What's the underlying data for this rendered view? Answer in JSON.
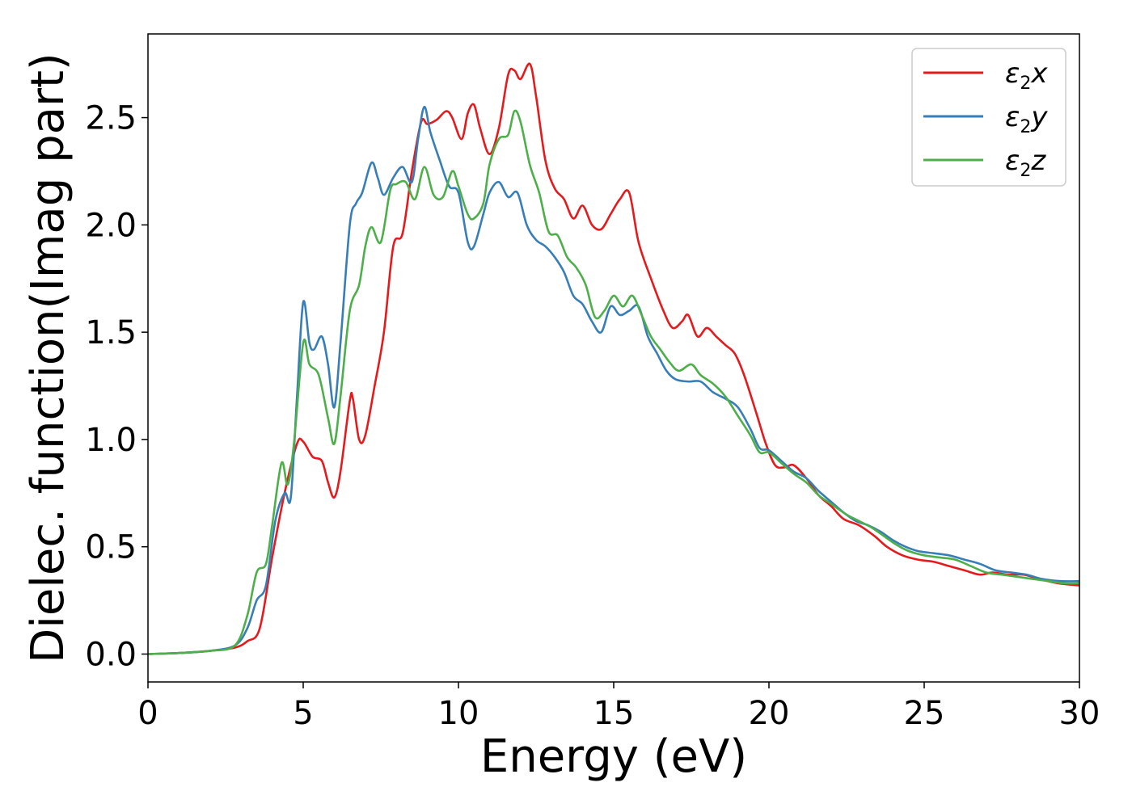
{
  "chart_data": {
    "type": "line",
    "xlabel": "Energy (eV)",
    "ylabel": "Dielec. function(Imag part)",
    "xlim": [
      0,
      30
    ],
    "ylim": [
      -0.13,
      2.89
    ],
    "xticks": [
      0,
      5,
      10,
      15,
      20,
      25,
      30
    ],
    "xtick_labels": [
      "0",
      "5",
      "10",
      "15",
      "20",
      "25",
      "30"
    ],
    "yticks": [
      0.0,
      0.5,
      1.0,
      1.5,
      2.0,
      2.5
    ],
    "ytick_labels": [
      "0.0",
      "0.5",
      "1.0",
      "1.5",
      "2.0",
      "2.5"
    ],
    "grid": false,
    "legend_position": "top-right",
    "series": [
      {
        "name": "ε2x",
        "name_base": "ε",
        "name_sub": "2",
        "name_suffix": "x",
        "color": "#e41a1c",
        "points": [
          [
            0,
            0
          ],
          [
            1,
            0.005
          ],
          [
            2,
            0.015
          ],
          [
            2.8,
            0.03
          ],
          [
            3.2,
            0.06
          ],
          [
            3.6,
            0.12
          ],
          [
            4.0,
            0.45
          ],
          [
            4.4,
            0.75
          ],
          [
            4.8,
            0.98
          ],
          [
            5.0,
            0.99
          ],
          [
            5.3,
            0.92
          ],
          [
            5.6,
            0.9
          ],
          [
            5.8,
            0.8
          ],
          [
            6.0,
            0.73
          ],
          [
            6.2,
            0.85
          ],
          [
            6.5,
            1.18
          ],
          [
            6.6,
            1.19
          ],
          [
            6.8,
            1.0
          ],
          [
            7.0,
            1.02
          ],
          [
            7.3,
            1.25
          ],
          [
            7.6,
            1.5
          ],
          [
            7.9,
            1.9
          ],
          [
            8.2,
            1.96
          ],
          [
            8.5,
            2.25
          ],
          [
            8.8,
            2.48
          ],
          [
            9.0,
            2.47
          ],
          [
            9.3,
            2.49
          ],
          [
            9.6,
            2.53
          ],
          [
            9.8,
            2.5
          ],
          [
            10.1,
            2.4
          ],
          [
            10.3,
            2.52
          ],
          [
            10.5,
            2.56
          ],
          [
            10.7,
            2.45
          ],
          [
            11.0,
            2.33
          ],
          [
            11.3,
            2.45
          ],
          [
            11.6,
            2.7
          ],
          [
            11.8,
            2.72
          ],
          [
            12.0,
            2.68
          ],
          [
            12.3,
            2.75
          ],
          [
            12.5,
            2.6
          ],
          [
            12.8,
            2.3
          ],
          [
            13.1,
            2.17
          ],
          [
            13.4,
            2.12
          ],
          [
            13.7,
            2.03
          ],
          [
            14.0,
            2.09
          ],
          [
            14.3,
            2.0
          ],
          [
            14.6,
            1.98
          ],
          [
            14.9,
            2.05
          ],
          [
            15.2,
            2.12
          ],
          [
            15.5,
            2.15
          ],
          [
            15.8,
            1.92
          ],
          [
            16.2,
            1.75
          ],
          [
            16.6,
            1.6
          ],
          [
            16.9,
            1.52
          ],
          [
            17.2,
            1.55
          ],
          [
            17.4,
            1.58
          ],
          [
            17.7,
            1.48
          ],
          [
            18.0,
            1.52
          ],
          [
            18.3,
            1.48
          ],
          [
            18.6,
            1.44
          ],
          [
            18.9,
            1.4
          ],
          [
            19.2,
            1.3
          ],
          [
            19.6,
            1.12
          ],
          [
            19.9,
            0.98
          ],
          [
            20.2,
            0.88
          ],
          [
            20.5,
            0.87
          ],
          [
            20.8,
            0.88
          ],
          [
            21.2,
            0.82
          ],
          [
            21.6,
            0.74
          ],
          [
            22.0,
            0.69
          ],
          [
            22.4,
            0.63
          ],
          [
            22.9,
            0.6
          ],
          [
            23.4,
            0.55
          ],
          [
            23.8,
            0.5
          ],
          [
            24.3,
            0.46
          ],
          [
            24.8,
            0.44
          ],
          [
            25.3,
            0.43
          ],
          [
            25.8,
            0.41
          ],
          [
            26.3,
            0.39
          ],
          [
            26.8,
            0.37
          ],
          [
            27.2,
            0.38
          ],
          [
            27.7,
            0.37
          ],
          [
            28.2,
            0.37
          ],
          [
            28.7,
            0.35
          ],
          [
            29.3,
            0.33
          ],
          [
            30,
            0.32
          ]
        ]
      },
      {
        "name": "ε2y",
        "name_base": "ε",
        "name_sub": "2",
        "name_suffix": "y",
        "color": "#377eb8",
        "points": [
          [
            0,
            0
          ],
          [
            1,
            0.005
          ],
          [
            2,
            0.015
          ],
          [
            2.8,
            0.04
          ],
          [
            3.2,
            0.12
          ],
          [
            3.5,
            0.25
          ],
          [
            3.8,
            0.32
          ],
          [
            4.1,
            0.62
          ],
          [
            4.4,
            0.75
          ],
          [
            4.6,
            0.73
          ],
          [
            4.8,
            1.2
          ],
          [
            5.0,
            1.64
          ],
          [
            5.2,
            1.45
          ],
          [
            5.35,
            1.42
          ],
          [
            5.6,
            1.48
          ],
          [
            5.8,
            1.35
          ],
          [
            6.0,
            1.15
          ],
          [
            6.2,
            1.45
          ],
          [
            6.5,
            2.0
          ],
          [
            6.7,
            2.1
          ],
          [
            6.9,
            2.15
          ],
          [
            7.2,
            2.29
          ],
          [
            7.4,
            2.22
          ],
          [
            7.6,
            2.14
          ],
          [
            7.9,
            2.22
          ],
          [
            8.2,
            2.27
          ],
          [
            8.5,
            2.2
          ],
          [
            8.7,
            2.4
          ],
          [
            8.9,
            2.55
          ],
          [
            9.1,
            2.43
          ],
          [
            9.4,
            2.3
          ],
          [
            9.7,
            2.18
          ],
          [
            10.0,
            2.15
          ],
          [
            10.3,
            1.92
          ],
          [
            10.5,
            1.9
          ],
          [
            10.8,
            2.05
          ],
          [
            11.0,
            2.15
          ],
          [
            11.3,
            2.2
          ],
          [
            11.6,
            2.13
          ],
          [
            11.9,
            2.15
          ],
          [
            12.2,
            2.0
          ],
          [
            12.5,
            1.93
          ],
          [
            12.8,
            1.9
          ],
          [
            13.1,
            1.85
          ],
          [
            13.4,
            1.78
          ],
          [
            13.7,
            1.67
          ],
          [
            14.0,
            1.63
          ],
          [
            14.3,
            1.55
          ],
          [
            14.6,
            1.5
          ],
          [
            14.9,
            1.62
          ],
          [
            15.2,
            1.58
          ],
          [
            15.5,
            1.6
          ],
          [
            15.8,
            1.62
          ],
          [
            16.1,
            1.48
          ],
          [
            16.4,
            1.4
          ],
          [
            16.7,
            1.32
          ],
          [
            17.0,
            1.28
          ],
          [
            17.4,
            1.27
          ],
          [
            17.8,
            1.27
          ],
          [
            18.2,
            1.22
          ],
          [
            18.6,
            1.19
          ],
          [
            19.0,
            1.15
          ],
          [
            19.4,
            1.05
          ],
          [
            19.7,
            0.96
          ],
          [
            20.0,
            0.95
          ],
          [
            20.4,
            0.9
          ],
          [
            20.8,
            0.85
          ],
          [
            21.2,
            0.82
          ],
          [
            21.6,
            0.76
          ],
          [
            22.0,
            0.71
          ],
          [
            22.4,
            0.66
          ],
          [
            22.8,
            0.62
          ],
          [
            23.2,
            0.6
          ],
          [
            23.6,
            0.57
          ],
          [
            24.0,
            0.53
          ],
          [
            24.4,
            0.5
          ],
          [
            24.8,
            0.48
          ],
          [
            25.3,
            0.47
          ],
          [
            25.8,
            0.46
          ],
          [
            26.3,
            0.44
          ],
          [
            26.8,
            0.42
          ],
          [
            27.3,
            0.39
          ],
          [
            27.8,
            0.38
          ],
          [
            28.3,
            0.37
          ],
          [
            28.8,
            0.35
          ],
          [
            29.4,
            0.34
          ],
          [
            30,
            0.34
          ]
        ]
      },
      {
        "name": "ε2z",
        "name_base": "ε",
        "name_sub": "2",
        "name_suffix": "z",
        "color": "#4daf4a",
        "points": [
          [
            0,
            0
          ],
          [
            1,
            0.005
          ],
          [
            2,
            0.015
          ],
          [
            2.8,
            0.04
          ],
          [
            3.2,
            0.18
          ],
          [
            3.5,
            0.38
          ],
          [
            3.8,
            0.42
          ],
          [
            4.0,
            0.6
          ],
          [
            4.3,
            0.89
          ],
          [
            4.5,
            0.79
          ],
          [
            4.7,
            0.98
          ],
          [
            5.0,
            1.45
          ],
          [
            5.2,
            1.35
          ],
          [
            5.5,
            1.3
          ],
          [
            5.8,
            1.1
          ],
          [
            6.0,
            0.98
          ],
          [
            6.2,
            1.2
          ],
          [
            6.5,
            1.6
          ],
          [
            6.8,
            1.72
          ],
          [
            7.0,
            1.9
          ],
          [
            7.2,
            1.99
          ],
          [
            7.5,
            1.92
          ],
          [
            7.8,
            2.16
          ],
          [
            8.0,
            2.19
          ],
          [
            8.3,
            2.2
          ],
          [
            8.6,
            2.12
          ],
          [
            8.9,
            2.27
          ],
          [
            9.2,
            2.14
          ],
          [
            9.5,
            2.13
          ],
          [
            9.8,
            2.25
          ],
          [
            10.0,
            2.18
          ],
          [
            10.3,
            2.05
          ],
          [
            10.5,
            2.03
          ],
          [
            10.8,
            2.1
          ],
          [
            11.0,
            2.28
          ],
          [
            11.3,
            2.4
          ],
          [
            11.6,
            2.42
          ],
          [
            11.8,
            2.53
          ],
          [
            12.0,
            2.48
          ],
          [
            12.3,
            2.28
          ],
          [
            12.6,
            2.15
          ],
          [
            12.9,
            1.97
          ],
          [
            13.2,
            1.95
          ],
          [
            13.5,
            1.85
          ],
          [
            13.8,
            1.8
          ],
          [
            14.1,
            1.72
          ],
          [
            14.4,
            1.57
          ],
          [
            14.7,
            1.6
          ],
          [
            15.0,
            1.67
          ],
          [
            15.3,
            1.62
          ],
          [
            15.6,
            1.67
          ],
          [
            15.9,
            1.58
          ],
          [
            16.2,
            1.48
          ],
          [
            16.5,
            1.42
          ],
          [
            16.8,
            1.36
          ],
          [
            17.1,
            1.32
          ],
          [
            17.5,
            1.35
          ],
          [
            17.8,
            1.3
          ],
          [
            18.2,
            1.26
          ],
          [
            18.6,
            1.2
          ],
          [
            19.0,
            1.11
          ],
          [
            19.4,
            1.02
          ],
          [
            19.7,
            0.94
          ],
          [
            20.0,
            0.94
          ],
          [
            20.4,
            0.89
          ],
          [
            20.8,
            0.84
          ],
          [
            21.2,
            0.8
          ],
          [
            21.6,
            0.74
          ],
          [
            22.0,
            0.7
          ],
          [
            22.5,
            0.65
          ],
          [
            22.9,
            0.62
          ],
          [
            23.3,
            0.59
          ],
          [
            23.7,
            0.55
          ],
          [
            24.1,
            0.51
          ],
          [
            24.5,
            0.48
          ],
          [
            25.0,
            0.46
          ],
          [
            25.5,
            0.45
          ],
          [
            26.0,
            0.44
          ],
          [
            26.5,
            0.41
          ],
          [
            27.0,
            0.38
          ],
          [
            27.5,
            0.37
          ],
          [
            28.0,
            0.36
          ],
          [
            28.5,
            0.35
          ],
          [
            29.0,
            0.34
          ],
          [
            29.5,
            0.33
          ],
          [
            30,
            0.33
          ]
        ]
      }
    ]
  }
}
